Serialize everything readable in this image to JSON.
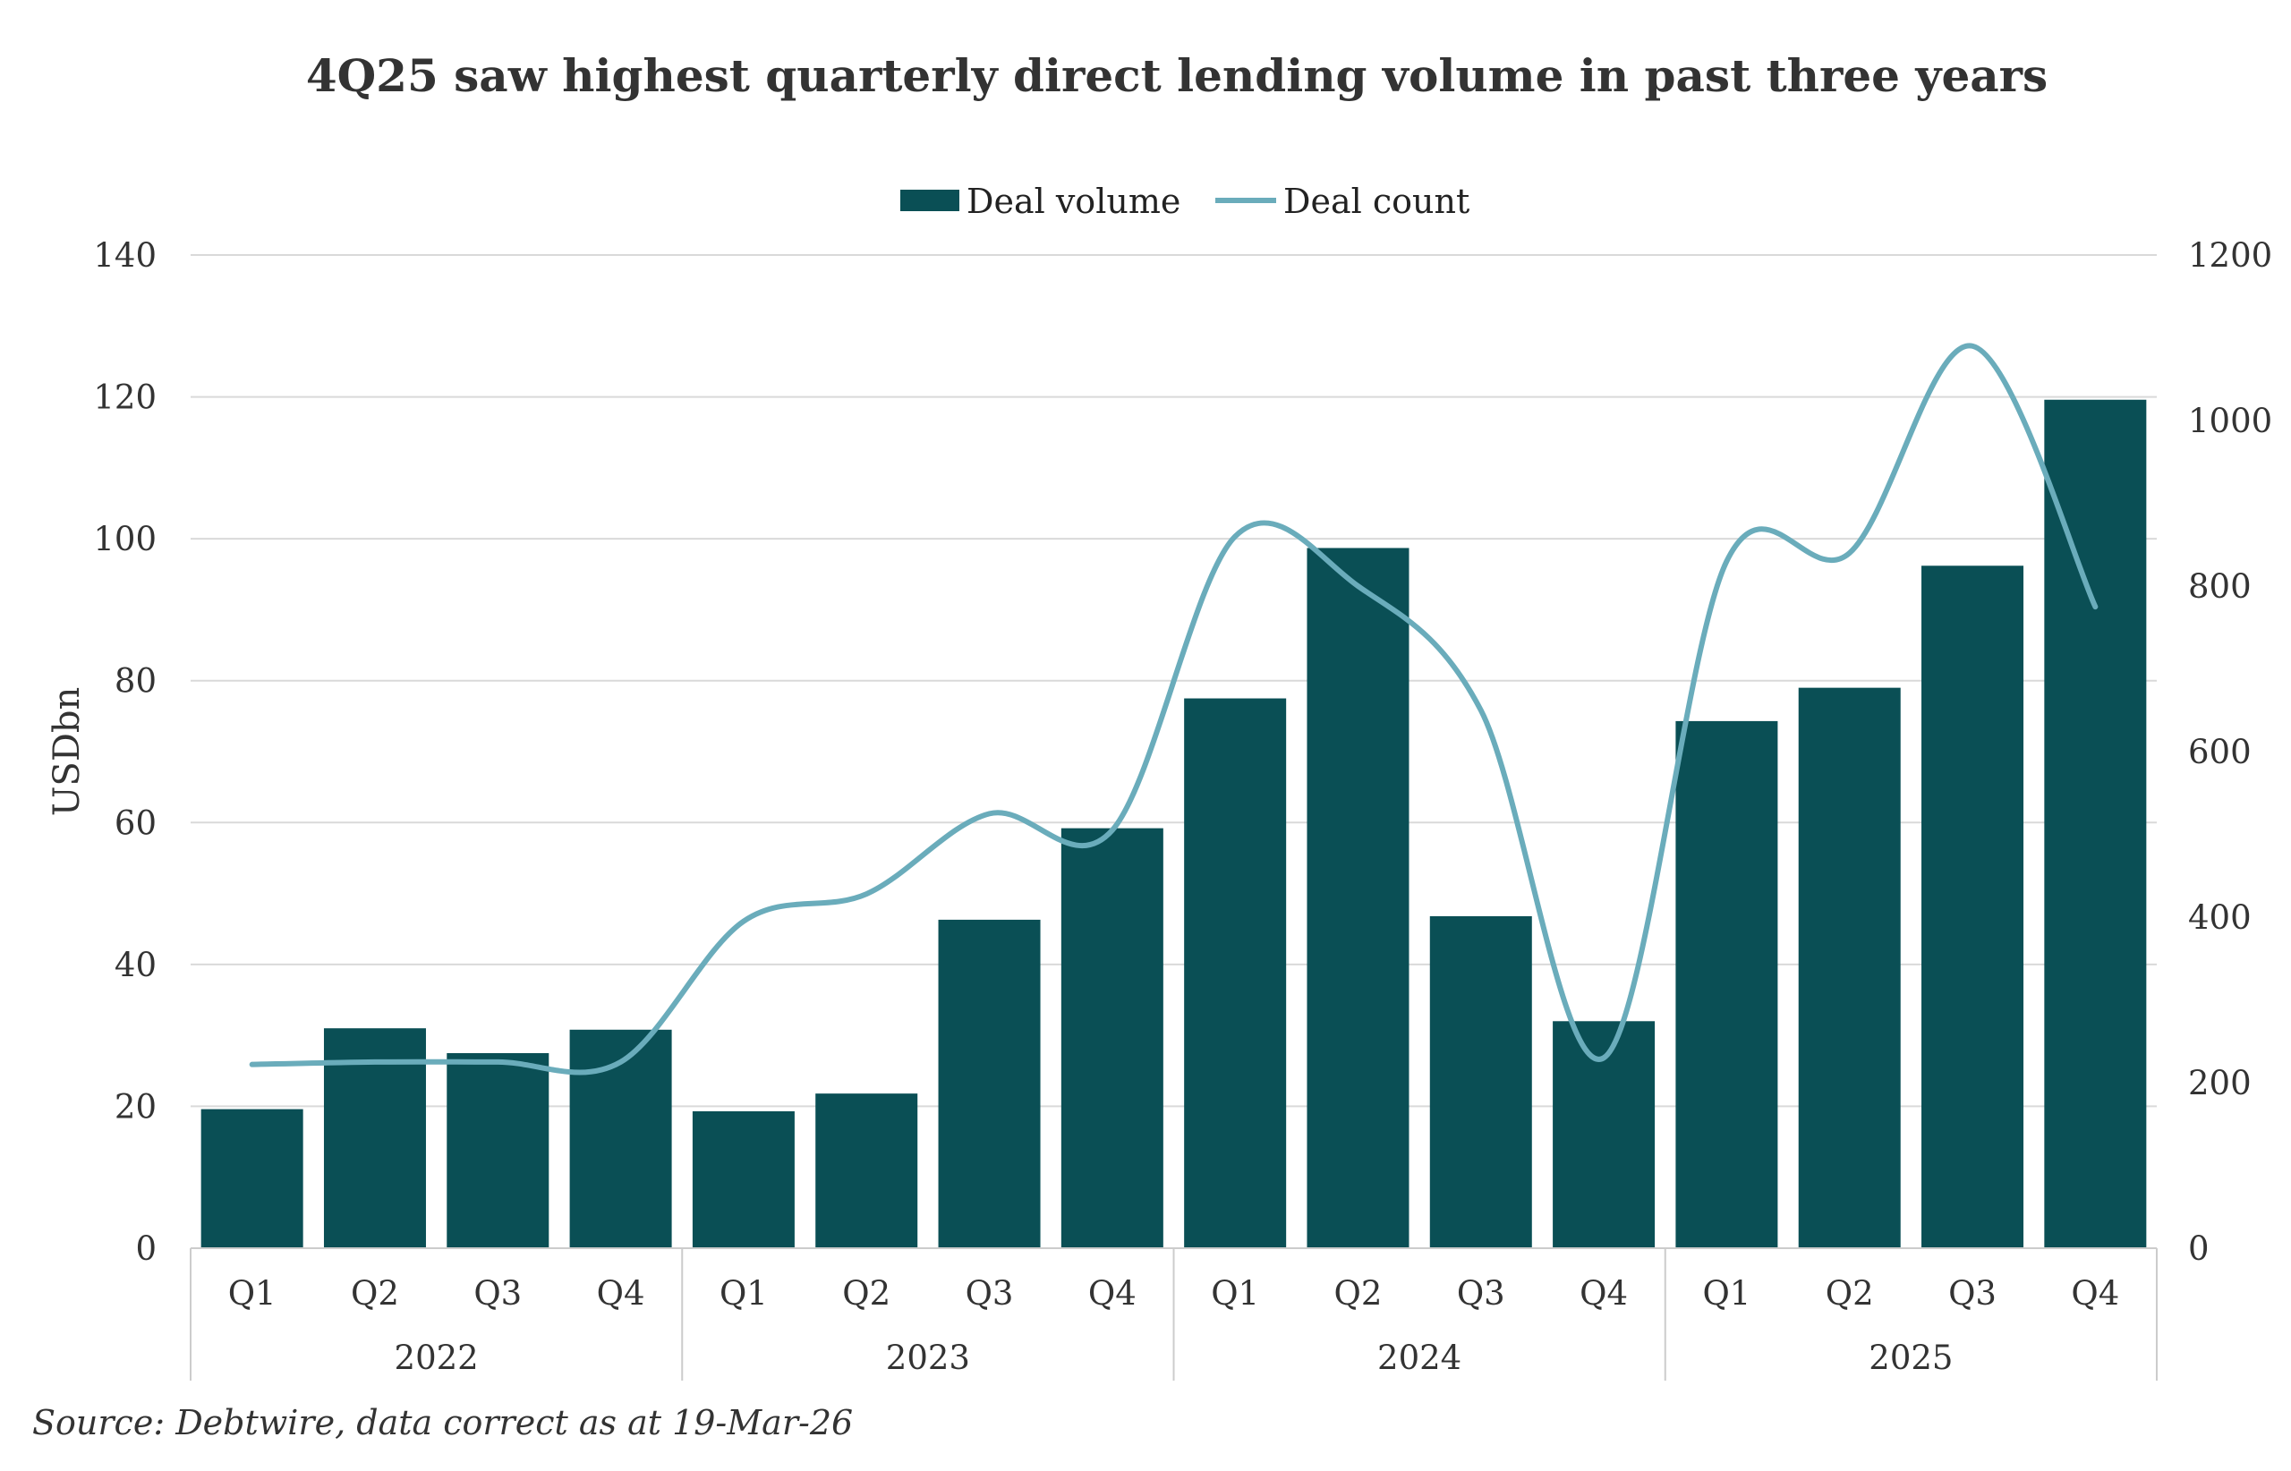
{
  "chart_data": {
    "type": "bar",
    "title": "4Q25 saw highest quarterly direct lending volume in past three years",
    "ylabel": "USDbn",
    "y2label": "",
    "ylim": [
      0,
      140
    ],
    "y2lim": [
      0,
      1200
    ],
    "yticks": [
      "0",
      "20",
      "40",
      "60",
      "80",
      "100",
      "120",
      "140"
    ],
    "y2ticks": [
      "0",
      "200",
      "400",
      "600",
      "800",
      "1000",
      "1200"
    ],
    "grid": true,
    "legend_position": "top-center",
    "categories": [
      "Q1",
      "Q2",
      "Q3",
      "Q4",
      "Q1",
      "Q2",
      "Q3",
      "Q4",
      "Q1",
      "Q2",
      "Q3",
      "Q4",
      "Q1",
      "Q2",
      "Q3",
      "Q4"
    ],
    "groups": [
      {
        "label": "2022",
        "count": 4
      },
      {
        "label": "2023",
        "count": 4
      },
      {
        "label": "2024",
        "count": 4
      },
      {
        "label": "2025",
        "count": 4
      }
    ],
    "series": [
      {
        "name": "Deal volume",
        "type": "bar",
        "axis": "left",
        "color": "#0a4f55",
        "values": [
          19.6,
          31.0,
          27.5,
          30.8,
          19.3,
          21.8,
          46.3,
          59.2,
          77.5,
          98.7,
          46.8,
          32.0,
          74.3,
          79.0,
          96.2,
          119.6
        ]
      },
      {
        "name": "Deal count",
        "type": "line",
        "axis": "right",
        "color": "#6aacbb",
        "values": [
          222,
          225,
          225,
          225,
          395,
          428,
          525,
          505,
          860,
          800,
          650,
          230,
          830,
          840,
          1090,
          775
        ]
      }
    ],
    "source": "Source: Debtwire, data correct as at 19-Mar-26"
  }
}
